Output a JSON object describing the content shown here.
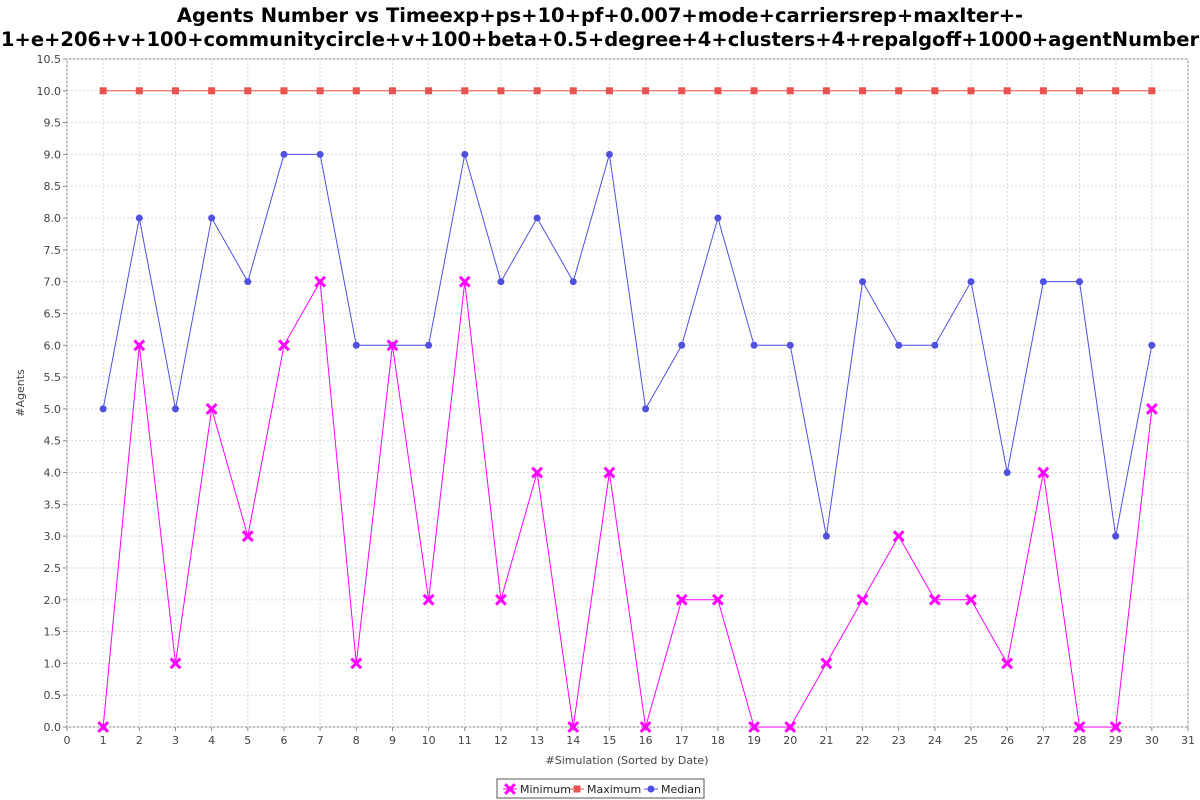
{
  "chart_data": {
    "type": "line",
    "title_line1": "Agents Number vs Timeexp+ps+10+pf+0.007+mode+carriersrep+maxIter+-",
    "title_line2": "1+e+206+v+100+communitycircle+v+100+beta+0.5+degree+4+clusters+4+repalgoff+1000+agentNumber",
    "xlabel": "#Simulation (Sorted by Date)",
    "ylabel": "#Agents",
    "xlim": [
      0,
      31
    ],
    "ylim": [
      0,
      10.5
    ],
    "x_ticks": [
      0,
      1,
      2,
      3,
      4,
      5,
      6,
      7,
      8,
      9,
      10,
      11,
      12,
      13,
      14,
      15,
      16,
      17,
      18,
      19,
      20,
      21,
      22,
      23,
      24,
      25,
      26,
      27,
      28,
      29,
      30,
      31
    ],
    "y_ticks": [
      0.0,
      0.5,
      1.0,
      1.5,
      2.0,
      2.5,
      3.0,
      3.5,
      4.0,
      4.5,
      5.0,
      5.5,
      6.0,
      6.5,
      7.0,
      7.5,
      8.0,
      8.5,
      9.0,
      9.5,
      10.0,
      10.5
    ],
    "grid": true,
    "legend_position": "bottom-center",
    "x": [
      1,
      2,
      3,
      4,
      5,
      6,
      7,
      8,
      9,
      10,
      11,
      12,
      13,
      14,
      15,
      16,
      17,
      18,
      19,
      20,
      21,
      22,
      23,
      24,
      25,
      26,
      27,
      28,
      29,
      30
    ],
    "series": [
      {
        "name": "Minimum",
        "color": "#ff00ff",
        "marker": "cross",
        "values": [
          0,
          6,
          1,
          5,
          3,
          6,
          7,
          1,
          6,
          2,
          7,
          2,
          4,
          0,
          4,
          0,
          2,
          2,
          0,
          0,
          1,
          2,
          3,
          2,
          2,
          1,
          4,
          0,
          0,
          5
        ]
      },
      {
        "name": "Maximum",
        "color": "#e8534f",
        "marker": "square",
        "values": [
          10,
          10,
          10,
          10,
          10,
          10,
          10,
          10,
          10,
          10,
          10,
          10,
          10,
          10,
          10,
          10,
          10,
          10,
          10,
          10,
          10,
          10,
          10,
          10,
          10,
          10,
          10,
          10,
          10,
          10
        ]
      },
      {
        "name": "Median",
        "color": "#5050e0",
        "marker": "circle",
        "values": [
          5,
          8,
          5,
          8,
          7,
          9,
          9,
          6,
          6,
          6,
          9,
          7,
          8,
          7,
          9,
          5,
          6,
          8,
          6,
          6,
          3,
          7,
          6,
          6,
          7,
          4,
          7,
          7,
          3,
          6
        ]
      }
    ]
  }
}
